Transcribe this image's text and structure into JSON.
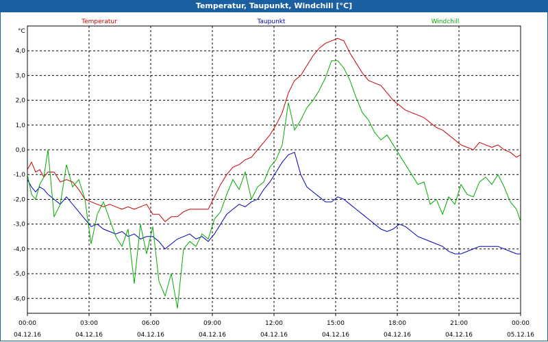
{
  "window": {
    "title": "Temperatur, Taupunkt, Windchill [°C]"
  },
  "chart_data": {
    "type": "line",
    "title": "Temperatur, Taupunkt, Windchill [°C]",
    "ylabel": "°C",
    "ylim": [
      -6.6,
      5.0
    ],
    "yticks": [
      4.0,
      3.0,
      2.0,
      1.0,
      0.0,
      -1.0,
      -2.0,
      -3.0,
      -4.0,
      -5.0,
      -6.0
    ],
    "ytick_labels": [
      "4,0",
      "3,0",
      "2,0",
      "1,0",
      "0,0",
      "-1,0",
      "-2,0",
      "-3,0",
      "-4,0",
      "-5,0",
      "-6,0"
    ],
    "xlim": [
      0,
      24
    ],
    "xticks": [
      0,
      3,
      6,
      9,
      12,
      15,
      18,
      21,
      24
    ],
    "xtick_times": [
      "00:00",
      "03:00",
      "06:00",
      "09:00",
      "12:00",
      "15:00",
      "18:00",
      "21:00",
      "00:00"
    ],
    "xtick_dates": [
      "04.12.16",
      "04.12.16",
      "04.12.16",
      "04.12.16",
      "04.12.16",
      "04.12.16",
      "04.12.16",
      "04.12.16",
      "05.12.16"
    ],
    "grid": true,
    "series": [
      {
        "name": "Temperatur",
        "color": "#cc0000",
        "x": [
          0,
          0.2,
          0.4,
          0.6,
          0.8,
          1.0,
          1.3,
          1.6,
          1.9,
          2.2,
          2.5,
          2.8,
          3.1,
          3.4,
          3.7,
          4.0,
          4.3,
          4.6,
          4.9,
          5.2,
          5.5,
          5.8,
          6.1,
          6.4,
          6.7,
          7.0,
          7.3,
          7.6,
          7.9,
          8.2,
          8.5,
          8.8,
          9.1,
          9.4,
          9.7,
          10.0,
          10.3,
          10.6,
          10.9,
          11.2,
          11.5,
          11.8,
          12.1,
          12.4,
          12.7,
          13.0,
          13.3,
          13.6,
          13.9,
          14.2,
          14.5,
          14.8,
          15.1,
          15.4,
          15.7,
          16.0,
          16.3,
          16.6,
          16.9,
          17.2,
          17.5,
          17.8,
          18.1,
          18.4,
          18.7,
          19.0,
          19.3,
          19.6,
          19.9,
          20.2,
          20.5,
          20.8,
          21.1,
          21.4,
          21.7,
          22.0,
          22.3,
          22.6,
          22.9,
          23.2,
          23.5,
          23.8,
          24.0
        ],
        "values": [
          -0.8,
          -0.5,
          -0.9,
          -0.8,
          -1.1,
          -0.9,
          -0.9,
          -1.3,
          -1.2,
          -1.3,
          -1.6,
          -2.0,
          -2.1,
          -2.2,
          -2.3,
          -2.2,
          -2.3,
          -2.4,
          -2.3,
          -2.4,
          -2.3,
          -2.2,
          -2.6,
          -2.6,
          -2.9,
          -2.7,
          -2.7,
          -2.5,
          -2.4,
          -2.4,
          -2.4,
          -2.4,
          -1.9,
          -1.4,
          -1.0,
          -0.7,
          -0.6,
          -0.4,
          -0.3,
          0.0,
          0.3,
          0.6,
          1.0,
          1.5,
          2.3,
          2.8,
          3.0,
          3.4,
          3.8,
          4.1,
          4.3,
          4.4,
          4.5,
          4.4,
          3.9,
          3.5,
          3.1,
          2.8,
          2.7,
          2.6,
          2.3,
          2.0,
          1.8,
          1.6,
          1.5,
          1.4,
          1.3,
          1.1,
          0.9,
          0.8,
          0.6,
          0.4,
          0.2,
          0.1,
          0.0,
          0.3,
          0.2,
          0.1,
          0.2,
          0.0,
          -0.1,
          -0.3,
          -0.2
        ]
      },
      {
        "name": "Taupunkt",
        "color": "#0000bb",
        "x": [
          0,
          0.2,
          0.4,
          0.6,
          0.8,
          1.0,
          1.3,
          1.6,
          1.9,
          2.2,
          2.5,
          2.8,
          3.1,
          3.4,
          3.7,
          4.0,
          4.3,
          4.6,
          4.9,
          5.2,
          5.5,
          5.8,
          6.1,
          6.4,
          6.7,
          7.0,
          7.3,
          7.6,
          7.9,
          8.2,
          8.5,
          8.8,
          9.1,
          9.4,
          9.7,
          10.0,
          10.3,
          10.6,
          10.9,
          11.2,
          11.5,
          11.8,
          12.1,
          12.4,
          12.7,
          13.0,
          13.3,
          13.6,
          13.9,
          14.2,
          14.5,
          14.8,
          15.1,
          15.4,
          15.7,
          16.0,
          16.3,
          16.6,
          16.9,
          17.2,
          17.5,
          17.8,
          18.1,
          18.4,
          18.7,
          19.0,
          19.3,
          19.6,
          19.9,
          20.2,
          20.5,
          20.8,
          21.1,
          21.4,
          21.7,
          22.0,
          22.3,
          22.6,
          22.9,
          23.2,
          23.5,
          23.8,
          24.0
        ],
        "values": [
          -1.2,
          -1.5,
          -1.7,
          -1.5,
          -1.6,
          -1.8,
          -2.0,
          -2.2,
          -1.9,
          -2.2,
          -2.5,
          -2.8,
          -3.1,
          -3.0,
          -3.2,
          -3.3,
          -3.4,
          -3.3,
          -3.5,
          -3.4,
          -3.6,
          -3.5,
          -3.5,
          -3.7,
          -4.0,
          -3.8,
          -3.6,
          -3.5,
          -3.4,
          -3.6,
          -3.5,
          -3.7,
          -3.4,
          -3.0,
          -2.6,
          -2.4,
          -2.2,
          -2.3,
          -2.1,
          -2.0,
          -1.6,
          -1.3,
          -0.9,
          -0.5,
          -0.2,
          -0.1,
          -1.0,
          -1.5,
          -1.7,
          -1.9,
          -2.1,
          -2.1,
          -1.9,
          -2.0,
          -2.2,
          -2.4,
          -2.6,
          -2.8,
          -3.0,
          -3.2,
          -3.3,
          -3.2,
          -3.0,
          -3.1,
          -3.3,
          -3.5,
          -3.6,
          -3.7,
          -3.8,
          -3.9,
          -4.1,
          -4.2,
          -4.2,
          -4.1,
          -4.0,
          -3.9,
          -3.9,
          -3.9,
          -3.9,
          -4.0,
          -4.1,
          -4.2,
          -4.2
        ]
      },
      {
        "name": "Windchill",
        "color": "#00aa00",
        "x": [
          0,
          0.2,
          0.4,
          0.6,
          0.8,
          1.0,
          1.3,
          1.6,
          1.9,
          2.2,
          2.5,
          2.8,
          3.1,
          3.4,
          3.7,
          4.0,
          4.3,
          4.6,
          4.9,
          5.2,
          5.5,
          5.8,
          6.1,
          6.4,
          6.7,
          7.0,
          7.3,
          7.6,
          7.9,
          8.2,
          8.5,
          8.8,
          9.1,
          9.4,
          9.7,
          10.0,
          10.3,
          10.6,
          10.9,
          11.2,
          11.5,
          11.8,
          12.1,
          12.4,
          12.7,
          13.0,
          13.3,
          13.6,
          13.9,
          14.2,
          14.5,
          14.8,
          15.1,
          15.4,
          15.7,
          16.0,
          16.3,
          16.6,
          16.9,
          17.2,
          17.5,
          17.8,
          18.1,
          18.4,
          18.7,
          19.0,
          19.3,
          19.6,
          19.9,
          20.2,
          20.5,
          20.8,
          21.1,
          21.4,
          21.7,
          22.0,
          22.3,
          22.6,
          22.9,
          23.2,
          23.5,
          23.8,
          24.0
        ],
        "values": [
          -1.0,
          -1.8,
          -2.0,
          -1.4,
          -1.1,
          0.0,
          -2.7,
          -2.2,
          -0.6,
          -1.5,
          -1.2,
          -2.0,
          -3.8,
          -2.6,
          -2.1,
          -2.8,
          -3.5,
          -3.9,
          -3.2,
          -5.4,
          -3.0,
          -4.2,
          -3.1,
          -5.3,
          -5.9,
          -5.0,
          -6.4,
          -4.0,
          -3.7,
          -3.9,
          -3.4,
          -3.6,
          -2.8,
          -2.5,
          -1.8,
          -1.2,
          -1.6,
          -0.9,
          -2.0,
          -1.5,
          -1.3,
          -0.7,
          -0.4,
          0.2,
          1.9,
          0.8,
          1.2,
          1.7,
          2.0,
          2.4,
          2.9,
          3.6,
          3.6,
          3.3,
          2.8,
          2.1,
          1.5,
          1.2,
          0.7,
          0.4,
          0.6,
          0.2,
          -0.2,
          -0.6,
          -1.0,
          -1.4,
          -1.3,
          -2.2,
          -2.0,
          -2.6,
          -1.9,
          -2.2,
          -1.4,
          -1.8,
          -1.9,
          -1.3,
          -1.1,
          -1.4,
          -1.0,
          -1.5,
          -2.1,
          -2.4,
          -2.9
        ]
      }
    ]
  }
}
